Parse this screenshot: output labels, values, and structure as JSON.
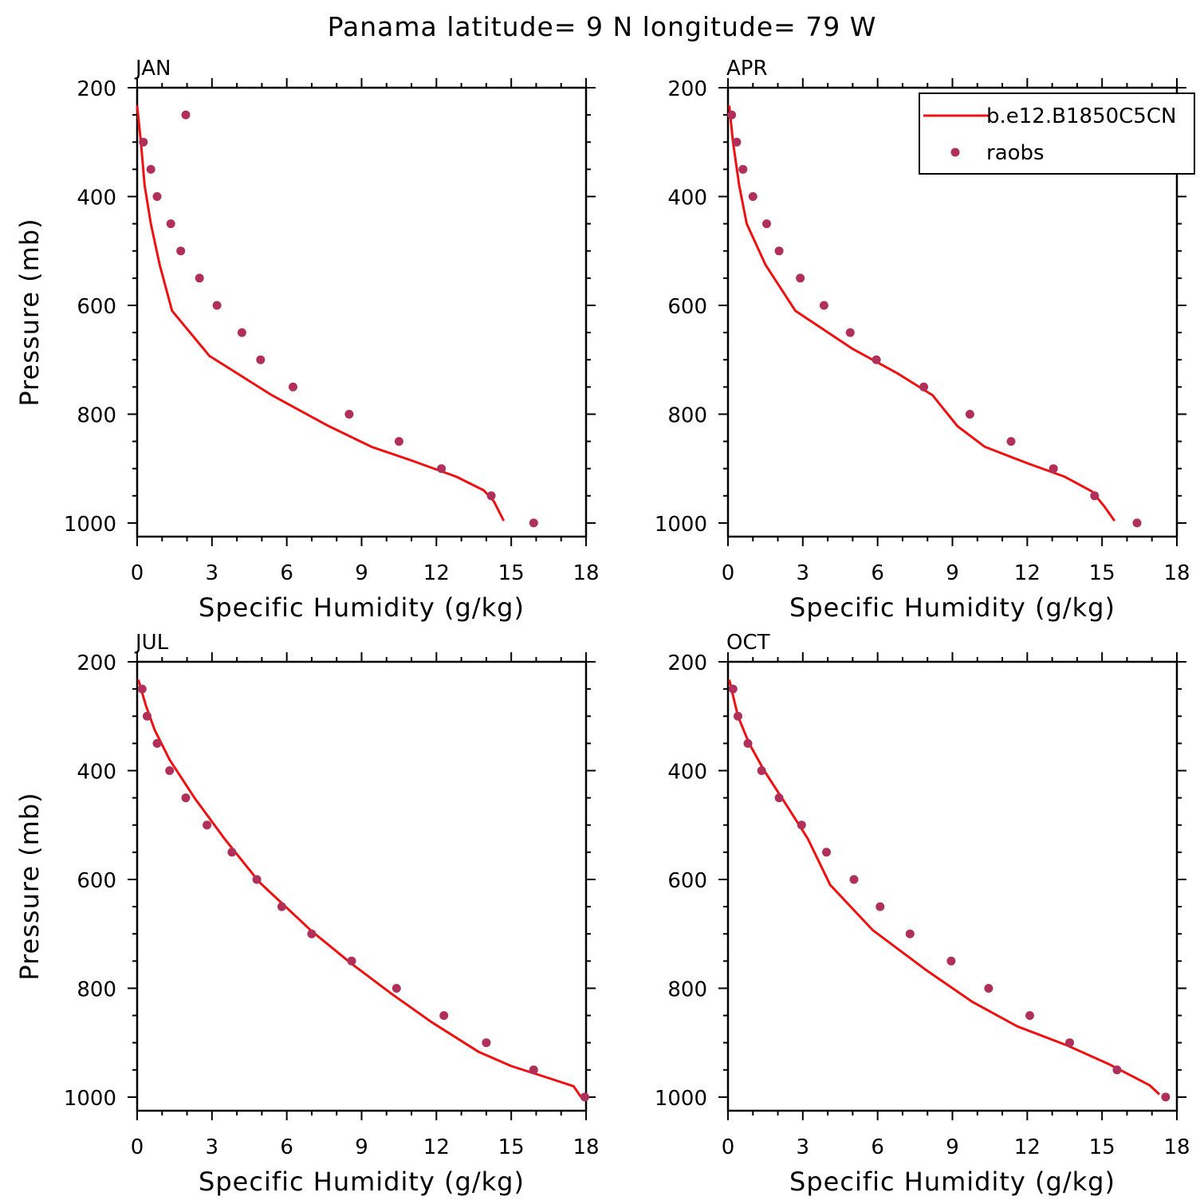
{
  "title": "Panama  latitude= 9 N longitude= 79 W",
  "legend": {
    "model_label": "b.e12.B1850C5CN",
    "obs_label": "raobs"
  },
  "colors": {
    "model_line": "#ee1111",
    "obs_marker": "#b0305a"
  },
  "chart_data": [
    {
      "type": "line",
      "panel": "JAN",
      "xlabel": "Specific Humidity (g/kg)",
      "ylabel": "Pressure (mb)",
      "xlim": [
        0,
        18
      ],
      "ylim": [
        1025,
        200
      ],
      "xticks": [
        0,
        3,
        6,
        9,
        12,
        15,
        18
      ],
      "yticks": [
        200,
        400,
        600,
        800,
        1000
      ],
      "y_reversed": true,
      "series": [
        {
          "name": "b.e12.B1850C5CN",
          "style": "line",
          "points": [
            [
              0.0,
              233
            ],
            [
              0.15,
              300
            ],
            [
              0.3,
              380
            ],
            [
              0.55,
              450
            ],
            [
              0.9,
              525
            ],
            [
              1.4,
              610
            ],
            [
              2.9,
              693
            ],
            [
              5.4,
              765
            ],
            [
              7.6,
              820
            ],
            [
              9.4,
              860
            ],
            [
              11.0,
              885
            ],
            [
              12.8,
              915
            ],
            [
              13.9,
              940
            ],
            [
              14.3,
              960
            ],
            [
              14.7,
              996
            ]
          ]
        },
        {
          "name": "raobs",
          "style": "points",
          "points": [
            [
              1.95,
              250
            ],
            [
              0.25,
              300
            ],
            [
              0.55,
              350
            ],
            [
              0.8,
              400
            ],
            [
              1.35,
              450
            ],
            [
              1.75,
              500
            ],
            [
              2.5,
              550
            ],
            [
              3.2,
              600
            ],
            [
              4.2,
              650
            ],
            [
              4.95,
              700
            ],
            [
              6.25,
              750
            ],
            [
              8.5,
              800
            ],
            [
              10.5,
              850
            ],
            [
              12.2,
              900
            ],
            [
              14.2,
              950
            ],
            [
              15.9,
              1000
            ]
          ]
        }
      ]
    },
    {
      "type": "line",
      "panel": "APR",
      "xlabel": "Specific Humidity (g/kg)",
      "ylabel": "",
      "xlim": [
        0,
        18
      ],
      "ylim": [
        1025,
        200
      ],
      "xticks": [
        0,
        3,
        6,
        9,
        12,
        15,
        18
      ],
      "yticks": [
        200,
        400,
        600,
        800,
        1000
      ],
      "y_reversed": true,
      "series": [
        {
          "name": "b.e12.B1850C5CN",
          "style": "line",
          "points": [
            [
              0.05,
              233
            ],
            [
              0.2,
              300
            ],
            [
              0.45,
              380
            ],
            [
              0.75,
              450
            ],
            [
              1.5,
              525
            ],
            [
              2.7,
              610
            ],
            [
              5.0,
              680
            ],
            [
              6.8,
              725
            ],
            [
              8.2,
              765
            ],
            [
              9.2,
              822
            ],
            [
              10.3,
              860
            ],
            [
              12.0,
              890
            ],
            [
              13.5,
              915
            ],
            [
              14.6,
              942
            ],
            [
              15.1,
              970
            ],
            [
              15.5,
              996
            ]
          ]
        },
        {
          "name": "raobs",
          "style": "points",
          "points": [
            [
              0.15,
              250
            ],
            [
              0.35,
              300
            ],
            [
              0.6,
              350
            ],
            [
              1.0,
              400
            ],
            [
              1.55,
              450
            ],
            [
              2.05,
              500
            ],
            [
              2.9,
              550
            ],
            [
              3.85,
              600
            ],
            [
              4.9,
              650
            ],
            [
              5.95,
              700
            ],
            [
              7.85,
              750
            ],
            [
              9.7,
              800
            ],
            [
              11.35,
              850
            ],
            [
              13.05,
              900
            ],
            [
              14.7,
              950
            ],
            [
              16.4,
              1000
            ]
          ]
        }
      ]
    },
    {
      "type": "line",
      "panel": "JUL",
      "xlabel": "Specific Humidity (g/kg)",
      "ylabel": "Pressure (mb)",
      "xlim": [
        0,
        18
      ],
      "ylim": [
        1025,
        200
      ],
      "xticks": [
        0,
        3,
        6,
        9,
        12,
        15,
        18
      ],
      "yticks": [
        200,
        400,
        600,
        800,
        1000
      ],
      "y_reversed": true,
      "series": [
        {
          "name": "b.e12.B1850C5CN",
          "style": "line",
          "points": [
            [
              0.05,
              233
            ],
            [
              0.35,
              280
            ],
            [
              0.7,
              325
            ],
            [
              1.3,
              380
            ],
            [
              2.3,
              450
            ],
            [
              3.5,
              525
            ],
            [
              4.9,
              605
            ],
            [
              7.0,
              695
            ],
            [
              8.6,
              755
            ],
            [
              10.2,
              810
            ],
            [
              11.8,
              862
            ],
            [
              13.7,
              917
            ],
            [
              15.0,
              943
            ],
            [
              16.3,
              962
            ],
            [
              17.5,
              980
            ],
            [
              17.8,
              1000
            ]
          ]
        },
        {
          "name": "raobs",
          "style": "points",
          "points": [
            [
              0.2,
              250
            ],
            [
              0.4,
              300
            ],
            [
              0.8,
              350
            ],
            [
              1.3,
              400
            ],
            [
              1.95,
              450
            ],
            [
              2.8,
              500
            ],
            [
              3.8,
              550
            ],
            [
              4.8,
              600
            ],
            [
              5.8,
              650
            ],
            [
              7.0,
              700
            ],
            [
              8.6,
              750
            ],
            [
              10.4,
              800
            ],
            [
              12.3,
              850
            ],
            [
              14.0,
              900
            ],
            [
              15.9,
              950
            ],
            [
              17.95,
              1000
            ]
          ]
        }
      ]
    },
    {
      "type": "line",
      "panel": "OCT",
      "xlabel": "Specific Humidity (g/kg)",
      "ylabel": "",
      "xlim": [
        0,
        18
      ],
      "ylim": [
        1025,
        200
      ],
      "xticks": [
        0,
        3,
        6,
        9,
        12,
        15,
        18
      ],
      "yticks": [
        200,
        400,
        600,
        800,
        1000
      ],
      "y_reversed": true,
      "series": [
        {
          "name": "b.e12.B1850C5CN",
          "style": "line",
          "points": [
            [
              0.05,
              233
            ],
            [
              0.4,
              300
            ],
            [
              0.85,
              350
            ],
            [
              1.45,
              400
            ],
            [
              2.3,
              460
            ],
            [
              3.2,
              525
            ],
            [
              4.1,
              610
            ],
            [
              5.8,
              693
            ],
            [
              7.9,
              765
            ],
            [
              9.8,
              825
            ],
            [
              11.6,
              870
            ],
            [
              13.6,
              905
            ],
            [
              15.3,
              940
            ],
            [
              16.9,
              978
            ],
            [
              17.3,
              995
            ]
          ]
        },
        {
          "name": "raobs",
          "style": "points",
          "points": [
            [
              0.2,
              250
            ],
            [
              0.4,
              300
            ],
            [
              0.8,
              350
            ],
            [
              1.35,
              400
            ],
            [
              2.05,
              450
            ],
            [
              2.95,
              500
            ],
            [
              3.95,
              550
            ],
            [
              5.05,
              600
            ],
            [
              6.1,
              650
            ],
            [
              7.3,
              700
            ],
            [
              8.95,
              750
            ],
            [
              10.45,
              800
            ],
            [
              12.1,
              850
            ],
            [
              13.7,
              900
            ],
            [
              15.6,
              950
            ],
            [
              17.55,
              1000
            ]
          ]
        }
      ]
    }
  ]
}
